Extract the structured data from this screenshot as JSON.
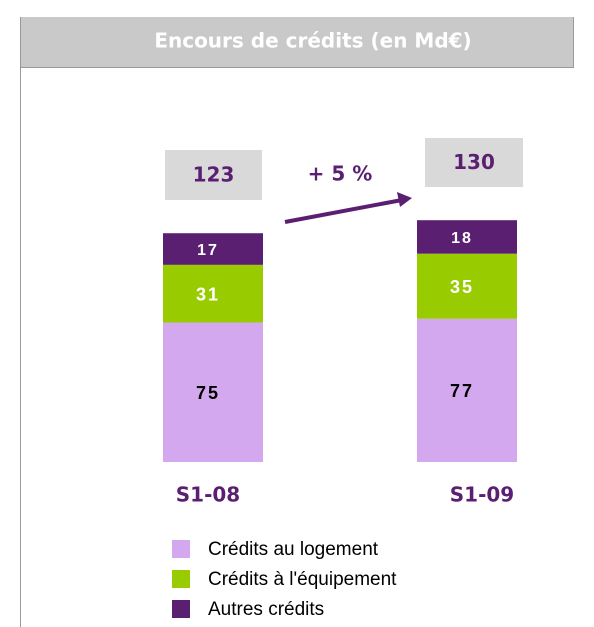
{
  "chart_data": {
    "type": "stacked_bar",
    "title": "Encours de crédits (en Md€)",
    "categories": [
      "S1-08",
      "S1-09"
    ],
    "series": [
      {
        "name": "Crédits au logement",
        "color": "#d4a8ef",
        "values": [
          75,
          77
        ]
      },
      {
        "name": "Crédits à l'équipement",
        "color": "#99cc00",
        "values": [
          31,
          35
        ]
      },
      {
        "name": "Autres crédits",
        "color": "#5b1f72",
        "values": [
          17,
          18
        ]
      }
    ],
    "totals": [
      123,
      130
    ],
    "annotation": "+ 5 %"
  }
}
